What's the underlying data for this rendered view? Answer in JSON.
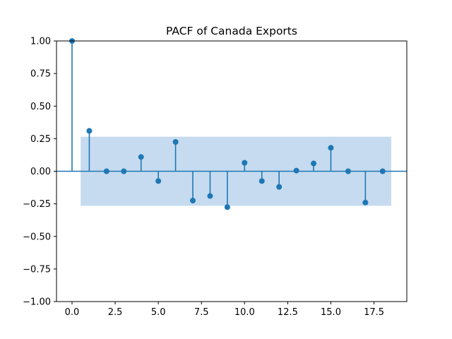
{
  "chart_data": {
    "type": "stem",
    "title": "PACF of Canada Exports",
    "xlabel": "",
    "ylabel": "",
    "xlim": [
      -0.9,
      19.4
    ],
    "ylim": [
      -1.0,
      1.0
    ],
    "x_ticks": [
      0.0,
      2.5,
      5.0,
      7.5,
      10.0,
      12.5,
      15.0,
      17.5
    ],
    "x_tick_labels": [
      "0.0",
      "2.5",
      "5.0",
      "7.5",
      "10.0",
      "12.5",
      "15.0",
      "17.5"
    ],
    "y_ticks": [
      -1.0,
      -0.75,
      -0.5,
      -0.25,
      0.0,
      0.25,
      0.5,
      0.75,
      1.0
    ],
    "y_tick_labels": [
      "−1.00",
      "−0.75",
      "−0.50",
      "−0.25",
      "0.00",
      "0.25",
      "0.50",
      "0.75",
      "1.00"
    ],
    "confidence_band": {
      "x_range": [
        0.5,
        18.5
      ],
      "upper": 0.265,
      "lower": -0.265,
      "color": "#c6dbef"
    },
    "series": [
      {
        "lags": [
          0,
          1,
          2,
          3,
          4,
          5,
          6,
          7,
          8,
          9,
          10,
          11,
          12,
          13,
          14,
          15,
          16,
          17,
          18
        ],
        "values": [
          1.0,
          0.31,
          0.0,
          0.0,
          0.11,
          -0.075,
          0.225,
          -0.225,
          -0.19,
          -0.275,
          0.065,
          -0.075,
          -0.12,
          0.005,
          0.06,
          0.18,
          0.0,
          -0.24,
          0.0
        ],
        "color": "#1f77b4"
      }
    ],
    "grid": false
  }
}
